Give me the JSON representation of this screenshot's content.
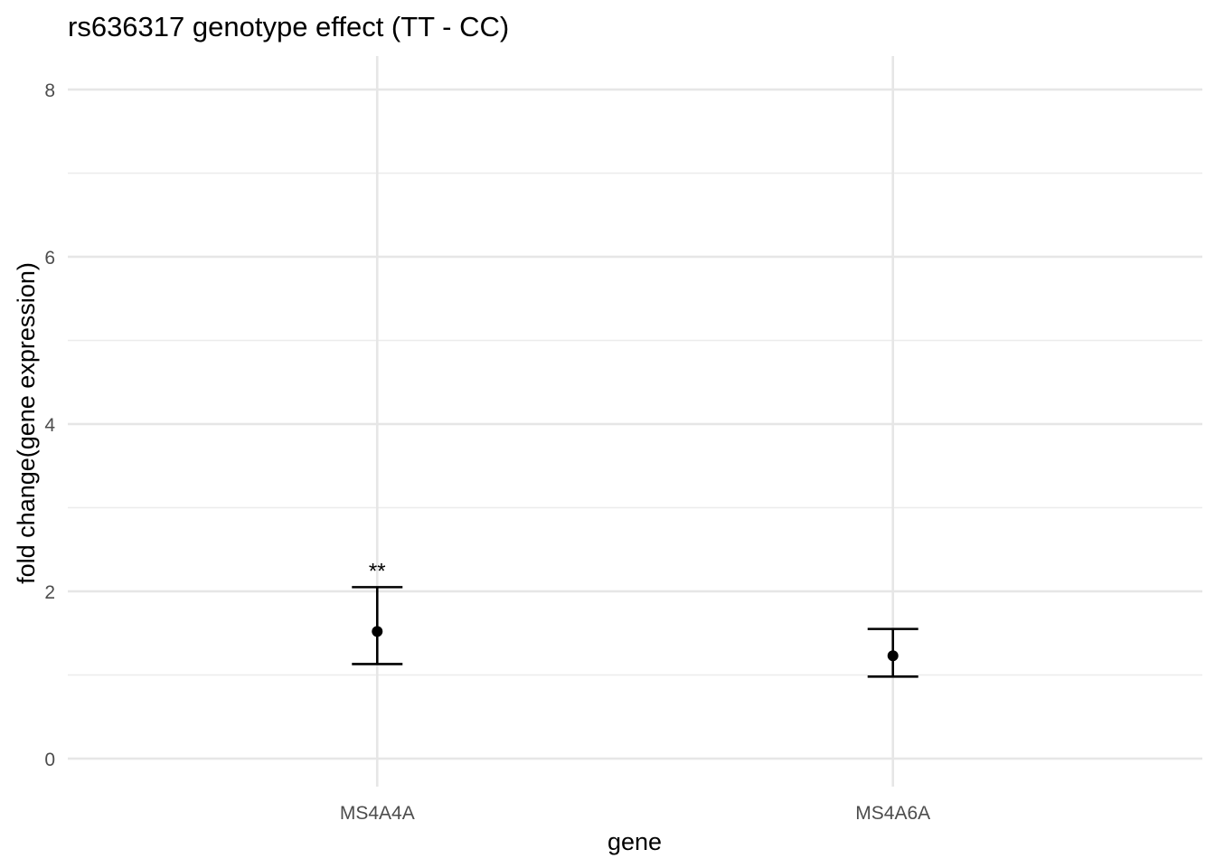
{
  "chart_data": {
    "type": "errorbar",
    "title": "rs636317 genotype effect (TT - CC)",
    "xlabel": "gene",
    "ylabel": "fold change(gene expression)",
    "categories": [
      "MS4A4A",
      "MS4A6A"
    ],
    "values": [
      1.52,
      1.23
    ],
    "lower": [
      1.13,
      0.98
    ],
    "upper": [
      2.05,
      1.55
    ],
    "annotations": [
      "**",
      ""
    ],
    "ylim": [
      -0.3,
      8.4
    ],
    "yticks": [
      0,
      2,
      4,
      6,
      8
    ],
    "ytick_labels": [
      "0",
      "2",
      "4",
      "6",
      "8"
    ],
    "grid": true,
    "legend": "none",
    "colors": {
      "marks": "#000000",
      "grid": "#ebebeb",
      "tick_text": "#4d4d4d"
    }
  }
}
